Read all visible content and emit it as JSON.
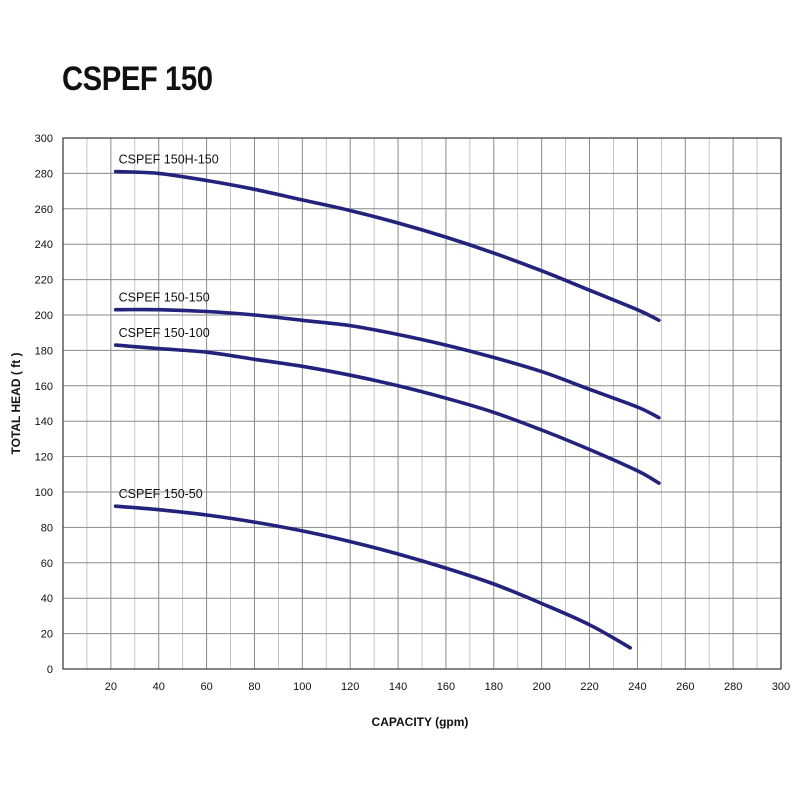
{
  "title": "CSPEF 150",
  "chart_data": {
    "type": "line",
    "title": "CSPEF 150",
    "xlabel": "CAPACITY (gpm)",
    "ylabel": "TOTAL HEAD ( ft )",
    "xlim": [
      0,
      300
    ],
    "ylim": [
      0,
      300
    ],
    "x_ticks": [
      "20",
      "40",
      "60",
      "80",
      "100",
      "120",
      "140",
      "160",
      "180",
      "200",
      "220",
      "240",
      "260",
      "280",
      "300"
    ],
    "y_ticks": [
      "0",
      "20",
      "40",
      "60",
      "80",
      "100",
      "120",
      "140",
      "160",
      "180",
      "200",
      "220",
      "240",
      "260",
      "280",
      "300"
    ],
    "grid": true,
    "line_color": "#23237d",
    "series": [
      {
        "name": "CSPEF 150H-150",
        "x": [
          22,
          40,
          60,
          80,
          100,
          120,
          140,
          160,
          180,
          200,
          220,
          240,
          249
        ],
        "y": [
          281,
          280,
          276,
          271,
          265,
          259,
          252,
          244,
          235,
          225,
          214,
          203,
          197
        ]
      },
      {
        "name": "CSPEF 150-150",
        "x": [
          22,
          40,
          60,
          80,
          100,
          120,
          140,
          160,
          180,
          200,
          220,
          240,
          249
        ],
        "y": [
          203,
          203,
          202,
          200,
          197,
          194,
          189,
          183,
          176,
          168,
          158,
          148,
          142
        ]
      },
      {
        "name": "CSPEF 150-100",
        "x": [
          22,
          40,
          60,
          80,
          100,
          120,
          140,
          160,
          180,
          200,
          220,
          240,
          249
        ],
        "y": [
          183,
          181,
          179,
          175,
          171,
          166,
          160,
          153,
          145,
          135,
          124,
          112,
          105
        ]
      },
      {
        "name": "CSPEF 150-50",
        "x": [
          22,
          40,
          60,
          80,
          100,
          120,
          140,
          160,
          180,
          200,
          220,
          237
        ],
        "y": [
          92,
          90,
          87,
          83,
          78,
          72,
          65,
          57,
          48,
          37,
          25,
          12
        ]
      }
    ]
  }
}
